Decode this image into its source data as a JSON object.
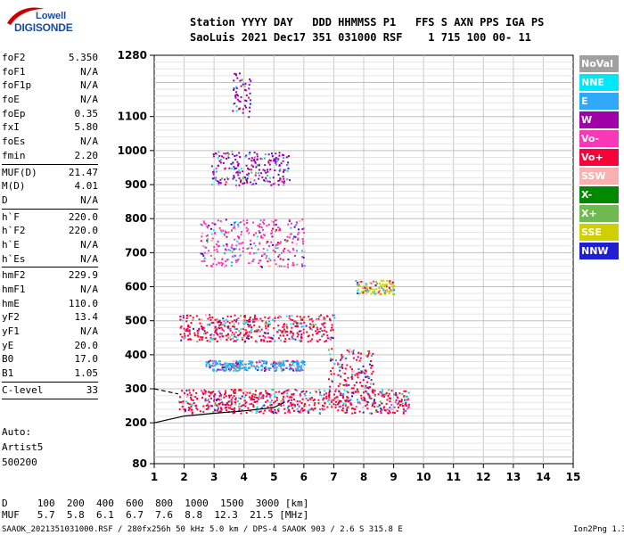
{
  "logo": {
    "line1": "Lowell",
    "line2": "DIGISONDE"
  },
  "header": {
    "line1": "Station YYYY DAY   DDD HHMMSS P1   FFS S AXN PPS IGA PS",
    "line2": "SaoLuis 2021 Dec17 351 031000 RSF    1 715 100 00- 11"
  },
  "params": {
    "group1": [
      {
        "label": "foF2",
        "value": "5.350"
      },
      {
        "label": "foF1",
        "value": "N/A"
      },
      {
        "label": "foF1p",
        "value": "N/A"
      },
      {
        "label": "foE",
        "value": "N/A"
      },
      {
        "label": "foEp",
        "value": "0.35"
      },
      {
        "label": "fxI",
        "value": "5.80"
      },
      {
        "label": "foEs",
        "value": "N/A"
      },
      {
        "label": "fmin",
        "value": "2.20"
      }
    ],
    "group2": [
      {
        "label": "MUF(D)",
        "value": "21.47"
      },
      {
        "label": "M(D)",
        "value": "4.01"
      },
      {
        "label": "D",
        "value": "N/A"
      }
    ],
    "group3": [
      {
        "label": "h`F",
        "value": "220.0"
      },
      {
        "label": "h`F2",
        "value": "220.0"
      },
      {
        "label": "h`E",
        "value": "N/A"
      },
      {
        "label": "h`Es",
        "value": "N/A"
      }
    ],
    "group4": [
      {
        "label": "hmF2",
        "value": "229.9"
      },
      {
        "label": "hmF1",
        "value": "N/A"
      },
      {
        "label": "hmE",
        "value": "110.0"
      },
      {
        "label": "yF2",
        "value": "13.4"
      },
      {
        "label": "yF1",
        "value": "N/A"
      },
      {
        "label": "yE",
        "value": "20.0"
      },
      {
        "label": "B0",
        "value": "17.0"
      },
      {
        "label": "B1",
        "value": "1.05"
      }
    ],
    "group5": [
      {
        "label": "C-level",
        "value": "33"
      }
    ]
  },
  "autoscale": {
    "line1": "Auto:",
    "line2": "Artist5",
    "line3": "500200"
  },
  "legend": [
    {
      "label": "NoVal",
      "color": "#a0a0a0"
    },
    {
      "label": "NNE",
      "color": "#00e8f8"
    },
    {
      "label": "E",
      "color": "#30a8f8"
    },
    {
      "label": "W",
      "color": "#a000a8"
    },
    {
      "label": "Vo-",
      "color": "#f838b8"
    },
    {
      "label": "Vo+",
      "color": "#f80038"
    },
    {
      "label": "SSW",
      "color": "#f8b0b0"
    },
    {
      "label": "X-",
      "color": "#008800"
    },
    {
      "label": "X+",
      "color": "#70b850"
    },
    {
      "label": "SSE",
      "color": "#d0d000"
    },
    {
      "label": "NNW",
      "color": "#2020d0"
    }
  ],
  "dtable": {
    "line1": "D     100  200  400  600  800  1000  1500  3000 [km]",
    "line2": "MUF   5.7  5.8  6.1  6.7  7.6  8.8  12.3  21.5 [MHz]"
  },
  "footer": {
    "left": "SAAOK_2021351031000.RSF / 280fx256h 50 kHz 5.0 km / DPS-4 SAAOK 903 / 2.6 S 315.8 E",
    "right": "Ion2Png 1.3.17"
  },
  "chart_data": {
    "type": "scatter",
    "x_range": [
      1,
      15
    ],
    "y_range": [
      80,
      1280
    ],
    "x_ticks": [
      "1",
      "2",
      "3",
      "4",
      "5",
      "6",
      "7",
      "8",
      "9",
      "10",
      "11",
      "12",
      "13",
      "14",
      "15"
    ],
    "y_ticks": [
      "80",
      "200",
      "300",
      "400",
      "500",
      "600",
      "700",
      "800",
      "900",
      "1000",
      "1100",
      "1280"
    ],
    "grid": true,
    "legend_position": "right",
    "traces": [
      {
        "name": "F-trace",
        "x": [
          1.0,
          2.0,
          3.0,
          4.0,
          5.0,
          5.35
        ],
        "y": [
          200,
          220,
          228,
          235,
          245,
          260
        ]
      },
      {
        "name": "E-trace",
        "x": [
          1.0,
          1.8
        ],
        "y": [
          300,
          285
        ]
      }
    ],
    "echo_clusters": [
      {
        "mode": "Vo+",
        "x": [
          1.8,
          9.5
        ],
        "y": [
          230,
          300
        ]
      },
      {
        "mode": "Vo+",
        "x": [
          6.8,
          8.3
        ],
        "y": [
          300,
          420
        ]
      },
      {
        "mode": "E",
        "x": [
          2.7,
          6.0
        ],
        "y": [
          355,
          385
        ]
      },
      {
        "mode": "Vo+",
        "x": [
          1.8,
          7.0
        ],
        "y": [
          440,
          520
        ]
      },
      {
        "mode": "SSE",
        "x": [
          7.7,
          9.0
        ],
        "y": [
          580,
          620
        ]
      },
      {
        "mode": "Vo-",
        "x": [
          2.5,
          6.0
        ],
        "y": [
          660,
          800
        ]
      },
      {
        "mode": "W",
        "x": [
          2.9,
          5.5
        ],
        "y": [
          900,
          1000
        ]
      },
      {
        "mode": "W",
        "x": [
          3.6,
          4.2
        ],
        "y": [
          1100,
          1230
        ]
      }
    ]
  }
}
